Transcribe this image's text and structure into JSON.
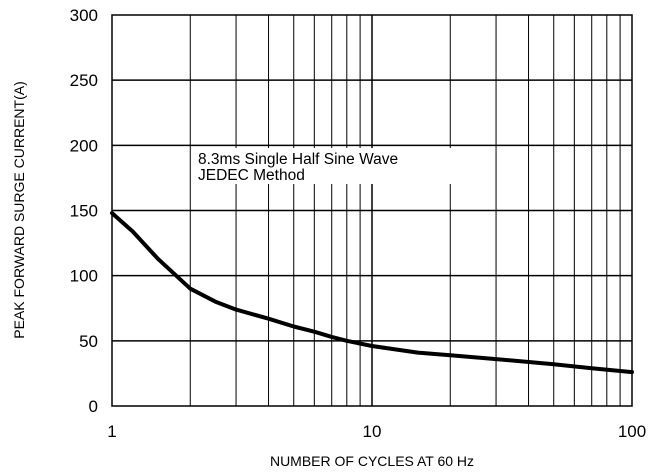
{
  "chart_data": {
    "type": "line",
    "title": "",
    "xlabel": "NUMBER OF CYCLES AT 60 Hz",
    "ylabel": "PEAK FORWARD SURGE CURRENT(A)",
    "xscale": "log",
    "xlim": [
      1,
      100
    ],
    "ylim": [
      0,
      300
    ],
    "x_ticks": [
      1,
      10,
      100
    ],
    "y_ticks": [
      0,
      50,
      100,
      150,
      200,
      250,
      300
    ],
    "grid": true,
    "annotation": [
      "8.3ms Single Half Sine Wave",
      "JEDEC Method"
    ],
    "series": [
      {
        "x": [
          1,
          1.2,
          1.5,
          2,
          2.5,
          3,
          4,
          5,
          6,
          7,
          8,
          10,
          15,
          20,
          30,
          50,
          70,
          100
        ],
        "y": [
          148,
          134,
          113,
          90,
          80,
          74,
          67,
          61,
          57,
          53,
          50,
          46,
          41,
          39,
          36,
          32,
          29,
          26
        ]
      }
    ]
  }
}
